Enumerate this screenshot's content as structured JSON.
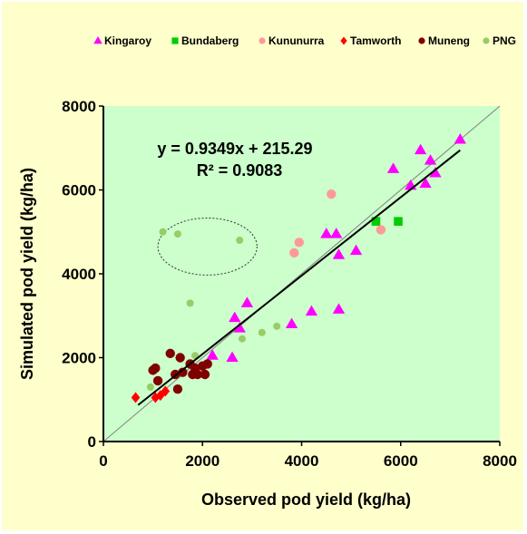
{
  "chart_data": {
    "type": "scatter",
    "xlabel": "Observed pod yield (kg/ha)",
    "ylabel": "Simulated pod yield (kg/ha)",
    "xlim": [
      0,
      8000
    ],
    "ylim": [
      0,
      8000
    ],
    "xticks": [
      "0",
      "2000",
      "4000",
      "6000",
      "8000"
    ],
    "yticks": [
      "0",
      "2000",
      "4000",
      "6000",
      "8000"
    ],
    "grid": false,
    "legend_position": "top",
    "plot_background": "#ccffcc",
    "figure_background": "#ffffcc",
    "annotations": {
      "equation": "y = 0.9349x + 215.29",
      "r_squared": "R² = 0.9083"
    },
    "reference_line": {
      "type": "1:1",
      "from": [
        0,
        0
      ],
      "to": [
        8000,
        8000
      ],
      "color": "#808080"
    },
    "regression_line": {
      "slope": 0.9349,
      "intercept": 215.29,
      "x_range": [
        700,
        7200
      ],
      "color": "#000000"
    },
    "highlight_ellipse": {
      "cx": 2100,
      "cy": 4650,
      "rx": 1000,
      "ry": 680,
      "style": "dashed"
    },
    "series": [
      {
        "name": "Kingaroy",
        "marker": "triangle",
        "color": "#ff00ff",
        "points": [
          [
            2200,
            2050
          ],
          [
            2600,
            2000
          ],
          [
            2650,
            2950
          ],
          [
            2750,
            2700
          ],
          [
            2900,
            3300
          ],
          [
            3800,
            2800
          ],
          [
            4200,
            3100
          ],
          [
            4500,
            4950
          ],
          [
            4700,
            4950
          ],
          [
            4750,
            4450
          ],
          [
            4750,
            3150
          ],
          [
            5100,
            4550
          ],
          [
            5850,
            6500
          ],
          [
            6200,
            6100
          ],
          [
            6400,
            6950
          ],
          [
            6500,
            6150
          ],
          [
            6600,
            6700
          ],
          [
            6700,
            6400
          ],
          [
            7200,
            7200
          ]
        ]
      },
      {
        "name": "Bundaberg",
        "marker": "square",
        "color": "#00cc00",
        "points": [
          [
            5500,
            5250
          ],
          [
            5950,
            5250
          ]
        ]
      },
      {
        "name": "Kununurra",
        "marker": "circle",
        "color": "#ff9999",
        "points": [
          [
            3850,
            4500
          ],
          [
            3950,
            4750
          ],
          [
            4600,
            5900
          ],
          [
            5600,
            5050
          ]
        ]
      },
      {
        "name": "Tamworth",
        "marker": "diamond",
        "color": "#ff0000",
        "points": [
          [
            650,
            1050
          ],
          [
            1050,
            1050
          ],
          [
            1150,
            1100
          ],
          [
            1250,
            1200
          ]
        ]
      },
      {
        "name": "Muneng",
        "marker": "circle",
        "color": "#800000",
        "points": [
          [
            1000,
            1700
          ],
          [
            1050,
            1750
          ],
          [
            1100,
            1450
          ],
          [
            1350,
            2100
          ],
          [
            1450,
            1600
          ],
          [
            1500,
            1250
          ],
          [
            1550,
            2000
          ],
          [
            1600,
            1650
          ],
          [
            1750,
            1850
          ],
          [
            1800,
            1600
          ],
          [
            1850,
            1750
          ],
          [
            1900,
            1600
          ],
          [
            2000,
            1800
          ],
          [
            2050,
            1600
          ],
          [
            2100,
            1850
          ]
        ]
      },
      {
        "name": "PNG",
        "marker": "circle",
        "color": "#99cc66",
        "points": [
          [
            950,
            1300
          ],
          [
            1200,
            5000
          ],
          [
            1500,
            4950
          ],
          [
            1750,
            3300
          ],
          [
            1850,
            2050
          ],
          [
            2750,
            4800
          ],
          [
            2800,
            2450
          ],
          [
            3200,
            2600
          ],
          [
            3500,
            2750
          ]
        ]
      }
    ]
  }
}
